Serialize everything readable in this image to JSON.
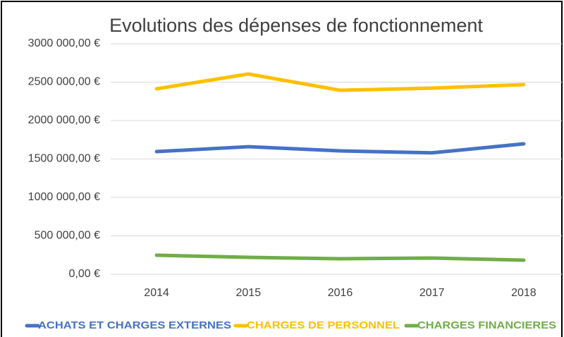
{
  "chart_data": {
    "type": "line",
    "title": "Evolutions des dépenses de fonctionnement",
    "categories": [
      "2014",
      "2015",
      "2016",
      "2017",
      "2018"
    ],
    "series": [
      {
        "name": "ACHATS ET CHARGES EXTERNES",
        "color": "#4472c4",
        "values": [
          1596000,
          1660000,
          1605000,
          1580000,
          1697000
        ]
      },
      {
        "name": "CHARGES DE PERSONNEL",
        "color": "#ffc000",
        "values": [
          2413000,
          2606000,
          2394000,
          2422000,
          2468000
        ]
      },
      {
        "name": "CHARGES FINANCIERES",
        "color": "#70ad47",
        "values": [
          248000,
          220000,
          202000,
          211000,
          183000
        ]
      }
    ],
    "ylim": [
      0,
      3000000
    ],
    "yticks": [
      {
        "value": 0,
        "label": "0,00 €"
      },
      {
        "value": 500000,
        "label": "500 000,00 €"
      },
      {
        "value": 1000000,
        "label": "1000 000,00 €"
      },
      {
        "value": 1500000,
        "label": "1500 000,00 €"
      },
      {
        "value": 2000000,
        "label": "2000 000,00 €"
      },
      {
        "value": 2500000,
        "label": "2500 000,00 €"
      },
      {
        "value": 3000000,
        "label": "3000 000,00 €"
      }
    ],
    "grid": true,
    "legend": "bottom"
  }
}
